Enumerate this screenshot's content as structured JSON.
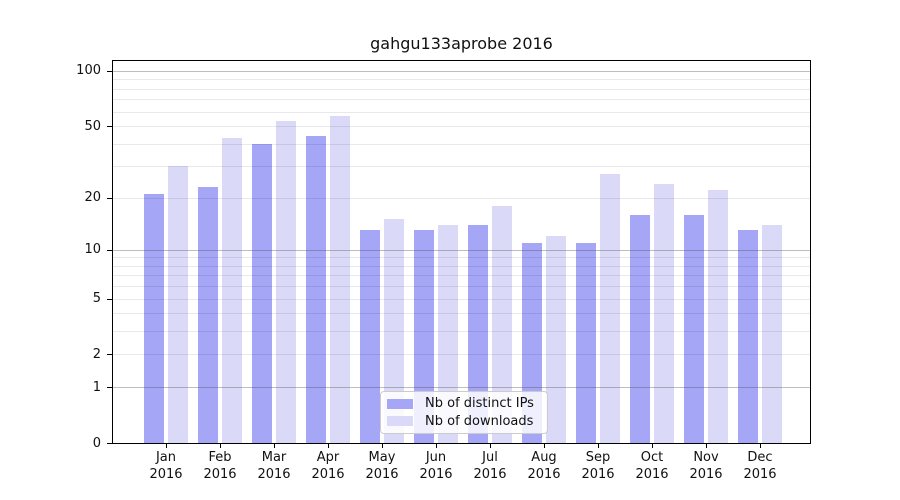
{
  "title": "gahgu133aprobe 2016",
  "legend": {
    "items": [
      {
        "label": "Nb of distinct IPs"
      },
      {
        "label": "Nb of downloads"
      }
    ],
    "position": "lower center"
  },
  "colors": {
    "distinct_ips": "#a6a6f7",
    "downloads": "#dadaf8",
    "grid_light": "rgba(0,0,0,0.085)",
    "grid_decade": "rgba(70,70,70,0.35)",
    "spine": "#000000",
    "text": "#111111"
  },
  "chart_data": {
    "type": "bar",
    "title": "gahgu133aprobe 2016",
    "categories": [
      "Jan",
      "Feb",
      "Mar",
      "Apr",
      "May",
      "Jun",
      "Jul",
      "Aug",
      "Sep",
      "Oct",
      "Nov",
      "Dec"
    ],
    "category_year_label": "2016",
    "series": [
      {
        "name": "Nb of distinct IPs",
        "color": "#a6a6f7",
        "values": [
          21,
          23,
          40,
          44,
          13,
          13,
          14,
          11,
          11,
          16,
          16,
          13
        ]
      },
      {
        "name": "Nb of downloads",
        "color": "#dadaf8",
        "values": [
          30,
          43,
          53,
          57,
          15,
          14,
          18,
          12,
          27,
          24,
          22,
          14
        ]
      }
    ],
    "yscale": "log10(1+y)",
    "yticks": [
      0,
      1,
      2,
      5,
      10,
      20,
      50,
      100
    ],
    "ylim": [
      0,
      113
    ],
    "grid": {
      "minor_values": [
        3,
        4,
        6,
        7,
        8,
        9,
        30,
        40,
        60,
        70,
        80,
        90
      ],
      "major_light_values": [
        2,
        5,
        20,
        50
      ],
      "major_dark_values": [
        1,
        10,
        100
      ]
    },
    "legend_position": "lower center",
    "grid_on": true
  }
}
